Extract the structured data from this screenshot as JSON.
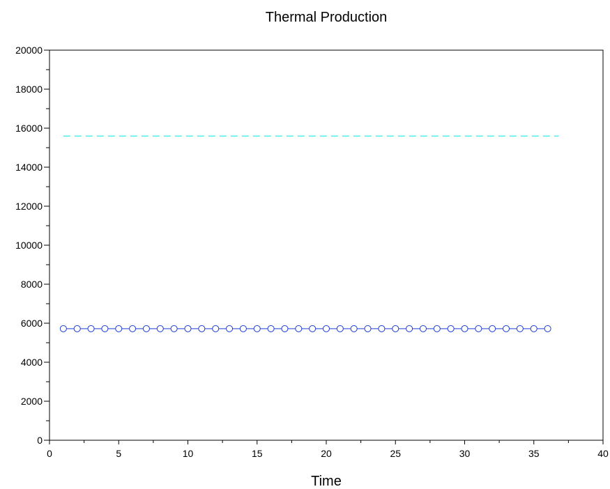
{
  "chart_data": {
    "type": "line",
    "title": "Thermal Production",
    "xlabel": "Time",
    "ylabel": "",
    "xlim": [
      0,
      40
    ],
    "ylim": [
      0,
      20000
    ],
    "x_ticks": [
      0,
      5,
      10,
      15,
      20,
      25,
      30,
      35,
      40
    ],
    "y_ticks": [
      0,
      2000,
      4000,
      6000,
      8000,
      10000,
      12000,
      14000,
      16000,
      18000,
      20000
    ],
    "grid": false,
    "series": [
      {
        "style": "dashed-line",
        "color": "#00e5e5",
        "x": [
          1,
          36.8
        ],
        "y": [
          15600,
          15600
        ]
      },
      {
        "style": "line-circle-markers",
        "color": "#1f3fd6",
        "x": [
          1,
          2,
          3,
          4,
          5,
          6,
          7,
          8,
          9,
          10,
          11,
          12,
          13,
          14,
          15,
          16,
          17,
          18,
          19,
          20,
          21,
          22,
          23,
          24,
          25,
          26,
          27,
          28,
          29,
          30,
          31,
          32,
          33,
          34,
          35,
          36
        ],
        "y": [
          5720,
          5720,
          5720,
          5720,
          5720,
          5720,
          5720,
          5720,
          5720,
          5720,
          5720,
          5720,
          5720,
          5720,
          5720,
          5720,
          5720,
          5720,
          5720,
          5720,
          5720,
          5720,
          5720,
          5720,
          5720,
          5720,
          5720,
          5720,
          5720,
          5720,
          5720,
          5720,
          5720,
          5720,
          5720,
          5720
        ]
      }
    ]
  }
}
